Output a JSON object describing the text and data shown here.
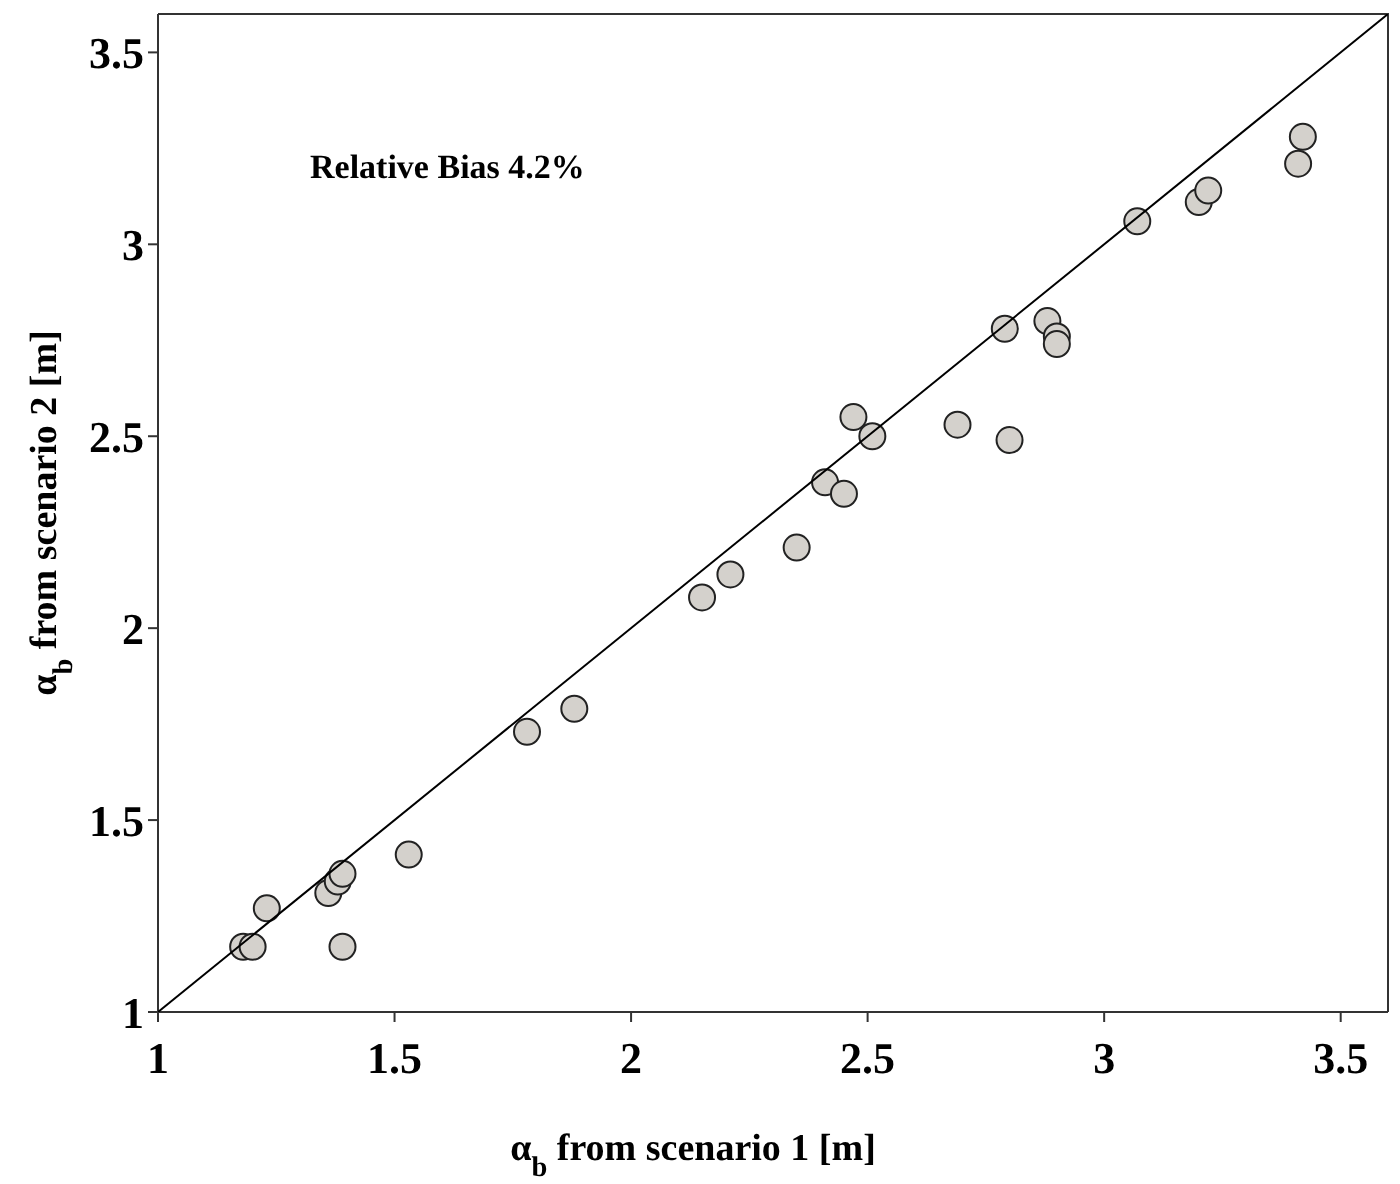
{
  "chart_data": {
    "type": "scatter",
    "xlabel": "α$_{b}$ from scenario 1 [m]",
    "ylabel": "α$_{b}$ from scenario 2 [m]",
    "annotations": [
      "Relative Bias 4.2%"
    ],
    "xlim": [
      1,
      3.6
    ],
    "ylim": [
      1,
      3.6
    ],
    "xticks": [
      1,
      1.5,
      2,
      2.5,
      3,
      3.5
    ],
    "yticks": [
      1,
      1.5,
      2,
      2.5,
      3,
      3.5
    ],
    "series": [
      {
        "marker": "circle",
        "color": "#d4d1cc",
        "x": [
          1.18,
          1.2,
          1.23,
          1.36,
          1.38,
          1.39,
          1.39,
          1.53,
          1.78,
          1.88,
          2.15,
          2.21,
          2.35,
          2.41,
          2.45,
          2.47,
          2.51,
          2.69,
          2.8,
          2.79,
          2.88,
          2.9,
          2.9,
          3.07,
          3.2,
          3.22,
          3.41,
          3.42
        ],
        "values": [
          1.17,
          1.17,
          1.27,
          1.31,
          1.34,
          1.36,
          1.17,
          1.41,
          1.73,
          1.79,
          2.08,
          2.14,
          2.21,
          2.38,
          2.35,
          2.55,
          2.5,
          2.53,
          2.49,
          2.78,
          2.8,
          2.76,
          2.74,
          3.06,
          3.11,
          3.14,
          3.21,
          3.28
        ]
      },
      {
        "type": "line",
        "marker": "none",
        "color": "#000000",
        "x": [
          1,
          3.6
        ],
        "values": [
          1,
          3.6
        ]
      }
    ]
  }
}
